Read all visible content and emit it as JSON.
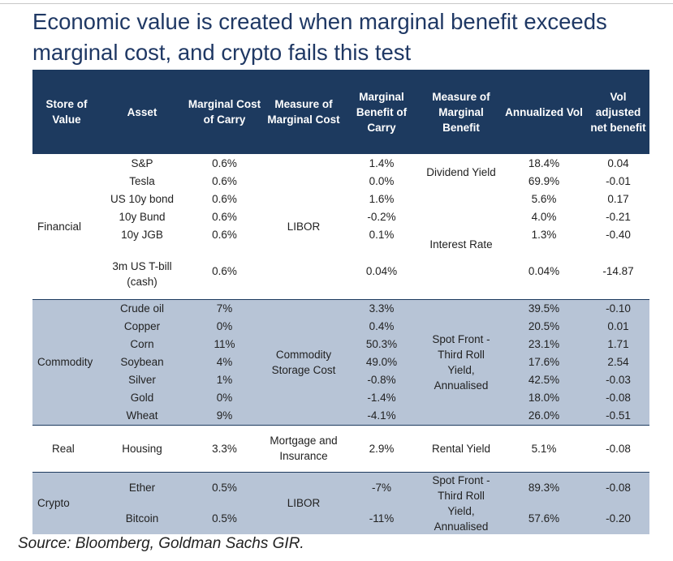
{
  "title": "Economic value is created when marginal benefit exceeds marginal cost, and crypto fails this test",
  "headers": [
    "Store of Value",
    "Asset",
    "Marginal Cost of Carry",
    "Measure of Marginal Cost",
    "Marginal Benefit of Carry",
    "Measure of Marginal Benefit",
    "Annualized Vol",
    "Vol adjusted net benefit"
  ],
  "financial": {
    "category": "Financial",
    "cost_measure": "LIBOR",
    "benefit_measure_1": "Dividend Yield",
    "benefit_measure_2": "Interest Rate",
    "rows": [
      {
        "asset": "S&P",
        "cost": "0.6%",
        "benefit": "1.4%",
        "vol": "18.4%",
        "net": "0.04"
      },
      {
        "asset": "Tesla",
        "cost": "0.6%",
        "benefit": "0.0%",
        "vol": "69.9%",
        "net": "-0.01"
      },
      {
        "asset": "US 10y bond",
        "cost": "0.6%",
        "benefit": "1.6%",
        "vol": "5.6%",
        "net": "0.17"
      },
      {
        "asset": "10y Bund",
        "cost": "0.6%",
        "benefit": "-0.2%",
        "vol": "4.0%",
        "net": "-0.21"
      },
      {
        "asset": "10y JGB",
        "cost": "0.6%",
        "benefit": "0.1%",
        "vol": "1.3%",
        "net": "-0.40"
      },
      {
        "asset": "3m US T-bill (cash)",
        "cost": "0.6%",
        "benefit": "0.04%",
        "vol": "0.04%",
        "net": "-14.87"
      }
    ]
  },
  "commodity": {
    "category": "Commodity",
    "cost_measure": "Commodity Storage Cost",
    "benefit_measure": "Spot Front - Third Roll Yield, Annualised",
    "rows": [
      {
        "asset": "Crude oil",
        "cost": "7%",
        "benefit": "3.3%",
        "vol": "39.5%",
        "net": "-0.10"
      },
      {
        "asset": "Copper",
        "cost": "0%",
        "benefit": "0.4%",
        "vol": "20.5%",
        "net": "0.01"
      },
      {
        "asset": "Corn",
        "cost": "11%",
        "benefit": "50.3%",
        "vol": "23.1%",
        "net": "1.71"
      },
      {
        "asset": "Soybean",
        "cost": "4%",
        "benefit": "49.0%",
        "vol": "17.6%",
        "net": "2.54"
      },
      {
        "asset": "Silver",
        "cost": "1%",
        "benefit": "-0.8%",
        "vol": "42.5%",
        "net": "-0.03"
      },
      {
        "asset": "Gold",
        "cost": "0%",
        "benefit": "-1.4%",
        "vol": "18.0%",
        "net": "-0.08"
      },
      {
        "asset": "Wheat",
        "cost": "9%",
        "benefit": "-4.1%",
        "vol": "26.0%",
        "net": "-0.51"
      }
    ]
  },
  "real": {
    "category": "Real",
    "asset": "Housing",
    "cost": "3.3%",
    "cost_measure": "Mortgage and Insurance",
    "benefit": "2.9%",
    "benefit_measure": "Rental Yield",
    "vol": "5.1%",
    "net": "-0.08"
  },
  "crypto": {
    "category": "Crypto",
    "cost_measure": "LIBOR",
    "benefit_measure": "Spot Front - Third Roll Yield, Annualised",
    "rows": [
      {
        "asset": "Ether",
        "cost": "0.5%",
        "benefit": "-7%",
        "vol": "89.3%",
        "net": "-0.08"
      },
      {
        "asset": "Bitcoin",
        "cost": "0.5%",
        "benefit": "-11%",
        "vol": "57.6%",
        "net": "-0.20"
      }
    ]
  },
  "source": "Source: Bloomberg, Goldman Sachs GIR."
}
